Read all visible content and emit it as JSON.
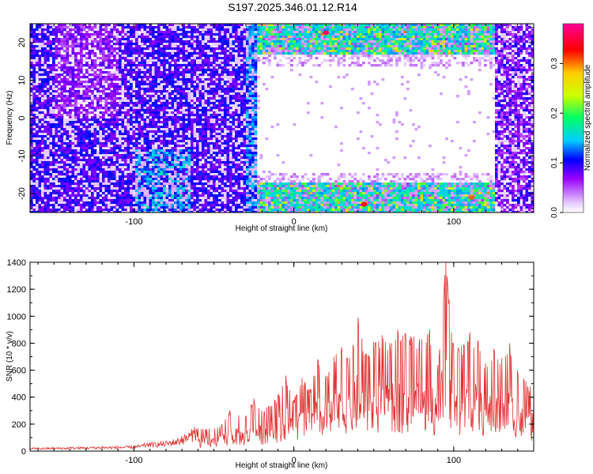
{
  "title": "S197.2025.346.01.12.R14",
  "chart_data": [
    {
      "type": "heatmap",
      "xlabel": "Height of straight line (km)",
      "ylabel": "Frequency (Hz)",
      "xlim": [
        -165,
        150
      ],
      "ylim": [
        -25,
        25
      ],
      "x_ticks": [
        -100,
        0,
        100
      ],
      "y_ticks": [
        -20,
        -10,
        0,
        10,
        20
      ],
      "colorbar": {
        "label": "Normalized spectral amplitude",
        "range": [
          0.0,
          0.38
        ],
        "ticks": [
          0.0,
          0.1,
          0.2,
          0.3
        ],
        "colors": [
          "#ffffff",
          "#e6ccff",
          "#9900ff",
          "#0000ff",
          "#00ccff",
          "#00ff66",
          "#ccff00",
          "#ffcc00",
          "#ff0000",
          "#ff0099"
        ]
      },
      "regions": [
        {
          "x": [
            -165,
            -30
          ],
          "f": [
            -25,
            25
          ],
          "level": "low-moderate, speckled"
        },
        {
          "x": [
            -100,
            -65
          ],
          "f": [
            -25,
            -8
          ],
          "level": "moderate 0.1-0.2"
        },
        {
          "x": [
            -25,
            125
          ],
          "f": [
            16,
            25
          ],
          "level": "high up to 0.38 near x=20"
        },
        {
          "x": [
            -25,
            125
          ],
          "f": [
            -25,
            -16
          ],
          "level": "high up to 0.3"
        },
        {
          "x": [
            -25,
            125
          ],
          "f": [
            -15,
            15
          ],
          "level": "near zero"
        },
        {
          "x": [
            125,
            150
          ],
          "f": [
            -25,
            25
          ],
          "level": "low-moderate"
        }
      ]
    },
    {
      "type": "line",
      "xlabel": "Height of straight line (km)",
      "ylabel": "SNR (10 * v/v)",
      "xlim": [
        -165,
        150
      ],
      "ylim": [
        0,
        1400
      ],
      "x_ticks": [
        -100,
        0,
        100
      ],
      "y_ticks": [
        0,
        200,
        400,
        600,
        800,
        1000,
        1200,
        1400
      ],
      "color": "#e03030",
      "series": [
        {
          "x": [
            -165,
            -140,
            -120,
            -100,
            -90,
            -80,
            -70,
            -62,
            -55,
            -45,
            -40,
            -30,
            -25,
            -20,
            -10,
            -5,
            0,
            5,
            10,
            15,
            20,
            25,
            30,
            35,
            40,
            45,
            50,
            55,
            60,
            65,
            70,
            75,
            80,
            85,
            90,
            95,
            100,
            105,
            110,
            115,
            120,
            125,
            130,
            135,
            140,
            145,
            148
          ],
          "y": [
            25,
            30,
            35,
            40,
            65,
            75,
            110,
            180,
            160,
            200,
            300,
            260,
            390,
            300,
            410,
            560,
            380,
            540,
            460,
            680,
            560,
            700,
            770,
            690,
            990,
            720,
            810,
            860,
            800,
            900,
            870,
            850,
            830,
            900,
            640,
            1410,
            760,
            780,
            880,
            820,
            650,
            760,
            690,
            800,
            600,
            520,
            480
          ]
        }
      ]
    }
  ]
}
